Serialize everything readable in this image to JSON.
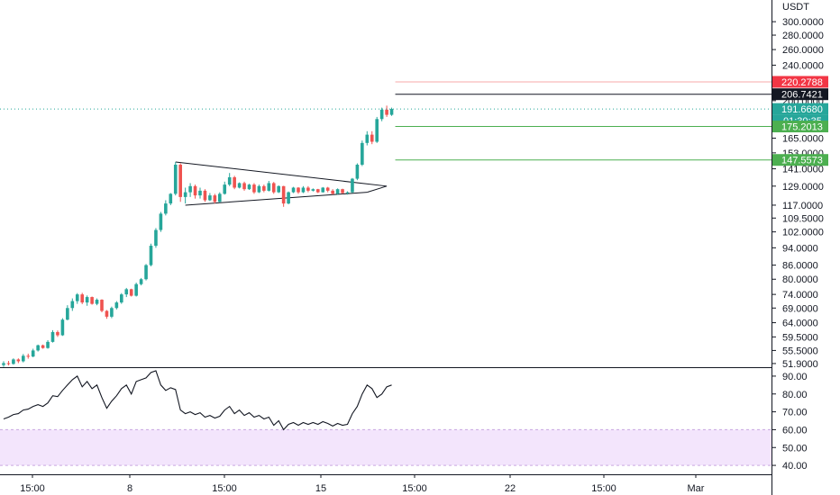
{
  "chart_data": {
    "type": "candlestick",
    "symbol_unit": "USDT",
    "price_axis": {
      "scale": "log",
      "range": [
        50,
        340
      ],
      "ticks": [
        {
          "value": 300,
          "label": "300.0000"
        },
        {
          "value": 280,
          "label": "280.0000"
        },
        {
          "value": 260,
          "label": "260.0000"
        },
        {
          "value": 240,
          "label": "240.0000"
        },
        {
          "value": 200,
          "label": "200.0000"
        },
        {
          "value": 165,
          "label": "165.0000"
        },
        {
          "value": 153,
          "label": "153.0000"
        },
        {
          "value": 141,
          "label": "141.0000"
        },
        {
          "value": 129,
          "label": "129.0000"
        },
        {
          "value": 117,
          "label": "117.0000"
        },
        {
          "value": 109.5,
          "label": "109.5000"
        },
        {
          "value": 102,
          "label": "102.0000"
        },
        {
          "value": 94,
          "label": "94.0000"
        },
        {
          "value": 86,
          "label": "86.0000"
        },
        {
          "value": 80,
          "label": "80.0000"
        },
        {
          "value": 74,
          "label": "74.0000"
        },
        {
          "value": 69,
          "label": "69.0000"
        },
        {
          "value": 64,
          "label": "64.0000"
        },
        {
          "value": 59.5,
          "label": "59.5000"
        },
        {
          "value": 55.5,
          "label": "55.5000"
        },
        {
          "value": 51.9,
          "label": "51.9000"
        }
      ]
    },
    "price_tags": [
      {
        "value": 220.2788,
        "label": "220.2788",
        "color": "#f23645",
        "line": "#f7a9a9"
      },
      {
        "value": 206.7421,
        "label": "206.7421",
        "color": "#131722",
        "line": "#131722"
      },
      {
        "value": 191.668,
        "label": "191.6680",
        "color": "#26a69a",
        "line": "#26a69a",
        "dotted": true
      },
      {
        "value": 175.2013,
        "label": "175.2013",
        "color": "#4caf50",
        "line": "#4caf50"
      },
      {
        "value": 147.5573,
        "label": "147.5573",
        "color": "#4caf50",
        "line": "#4caf50"
      }
    ],
    "countdown": "01:30:35",
    "time_axis": {
      "labels": [
        "15:00",
        "8",
        "15:00",
        "15",
        "15:00",
        "22",
        "15:00",
        "Mar"
      ]
    },
    "candles": [
      [
        51.5,
        52.5,
        51,
        52
      ],
      [
        52,
        52.6,
        51.4,
        51.8
      ],
      [
        51.8,
        53.3,
        51.6,
        53
      ],
      [
        53,
        53.3,
        52,
        52.5
      ],
      [
        52.5,
        54.5,
        52.2,
        54
      ],
      [
        54,
        54.6,
        53.2,
        53.8
      ],
      [
        53.8,
        56,
        53.6,
        55.5
      ],
      [
        55.5,
        57.2,
        55.2,
        57
      ],
      [
        57,
        57.2,
        56,
        56.2
      ],
      [
        56.2,
        58.5,
        56,
        58
      ],
      [
        58,
        61.6,
        57.8,
        61
      ],
      [
        61,
        61.5,
        59.5,
        60
      ],
      [
        60,
        65.5,
        59.8,
        65
      ],
      [
        65,
        70,
        64.8,
        69
      ],
      [
        69,
        72.5,
        68,
        71.5
      ],
      [
        71.5,
        74.5,
        70.5,
        74
      ],
      [
        74,
        74.6,
        70.4,
        71
      ],
      [
        71,
        73.6,
        69.8,
        73
      ],
      [
        73,
        73.2,
        70.2,
        70.5
      ],
      [
        70.5,
        72.5,
        70,
        72
      ],
      [
        72,
        72.2,
        67.5,
        68
      ],
      [
        68,
        68.3,
        65.3,
        66
      ],
      [
        66,
        69.5,
        65.5,
        69
      ],
      [
        69,
        71.5,
        68.5,
        71
      ],
      [
        71,
        74.5,
        70.5,
        74
      ],
      [
        74,
        76.5,
        73,
        76
      ],
      [
        76,
        76.2,
        73.2,
        73.5
      ],
      [
        73.5,
        78.6,
        73.2,
        78
      ],
      [
        78,
        80.5,
        77.5,
        80
      ],
      [
        80,
        86.5,
        79.5,
        86
      ],
      [
        86,
        96,
        85.5,
        95
      ],
      [
        95,
        104,
        94,
        103
      ],
      [
        103,
        113,
        102,
        112
      ],
      [
        112,
        120,
        111,
        118
      ],
      [
        118,
        124.5,
        117,
        124
      ],
      [
        124,
        146,
        123,
        144
      ],
      [
        144,
        145,
        119,
        122
      ],
      [
        122,
        128,
        118,
        125
      ],
      [
        125,
        131,
        122,
        129
      ],
      [
        129,
        130,
        121,
        123
      ],
      [
        123,
        128,
        121,
        126
      ],
      [
        126,
        127,
        119,
        120
      ],
      [
        120,
        124.5,
        119.5,
        123
      ],
      [
        123,
        124,
        118,
        119
      ],
      [
        119,
        125,
        118.5,
        124
      ],
      [
        124,
        132,
        123.5,
        130
      ],
      [
        130,
        138,
        129,
        135
      ],
      [
        135,
        136,
        127,
        128
      ],
      [
        128,
        131.5,
        127.5,
        131
      ],
      [
        131,
        132,
        126,
        127
      ],
      [
        127,
        130.5,
        126.5,
        130
      ],
      [
        130,
        131,
        124,
        125
      ],
      [
        125,
        130,
        124.5,
        129
      ],
      [
        129,
        130,
        125,
        126
      ],
      [
        126,
        132.5,
        125.5,
        131
      ],
      [
        131,
        131.8,
        124,
        125
      ],
      [
        125,
        129.5,
        124.5,
        129
      ],
      [
        129,
        129.2,
        116,
        118
      ],
      [
        118,
        125.5,
        117.5,
        125
      ],
      [
        125,
        128.5,
        124.5,
        128
      ],
      [
        128,
        128.4,
        124,
        125
      ],
      [
        125,
        129,
        124.5,
        128
      ],
      [
        128,
        129,
        125,
        126
      ],
      [
        126,
        127.5,
        125.5,
        127
      ],
      [
        127,
        127.2,
        124.5,
        125
      ],
      [
        125,
        128.4,
        124.8,
        128
      ],
      [
        128,
        128.5,
        125,
        126
      ],
      [
        126,
        127,
        123.5,
        124
      ],
      [
        124,
        127.5,
        123.5,
        127
      ],
      [
        127,
        127.3,
        124,
        124.5
      ],
      [
        124.5,
        125.6,
        123.5,
        125
      ],
      [
        125,
        134.5,
        124.5,
        134
      ],
      [
        134,
        145,
        133,
        144
      ],
      [
        144,
        163,
        143,
        161
      ],
      [
        161,
        171,
        159,
        168
      ],
      [
        168,
        171,
        160,
        162
      ],
      [
        162,
        184,
        161,
        182
      ],
      [
        182,
        193,
        180,
        191
      ],
      [
        191,
        195,
        184,
        186
      ],
      [
        186,
        193,
        185,
        191.668
      ]
    ],
    "pattern_lines": [
      {
        "from": [
          35,
          146
        ],
        "to": [
          78,
          129
        ]
      },
      {
        "from": [
          37,
          117
        ],
        "to": [
          74,
          125
        ]
      },
      {
        "from": [
          74,
          125
        ],
        "to": [
          78,
          129
        ]
      }
    ],
    "rsi": {
      "range": [
        35,
        95
      ],
      "ticks": [
        {
          "value": 90,
          "label": "90.00"
        },
        {
          "value": 80,
          "label": "80.00"
        },
        {
          "value": 70,
          "label": "70.00"
        },
        {
          "value": 60,
          "label": "60.00"
        },
        {
          "value": 50,
          "label": "50.00"
        },
        {
          "value": 40,
          "label": "40.00"
        }
      ],
      "band": [
        40,
        60
      ],
      "values": [
        66,
        67,
        68.5,
        69,
        71,
        71.5,
        73,
        74,
        73,
        75,
        79,
        78.5,
        82,
        85,
        88,
        90,
        84,
        87,
        83,
        85,
        78,
        72,
        76,
        79,
        83,
        85,
        80,
        87,
        88,
        89,
        92,
        93,
        85,
        82,
        83.5,
        82.5,
        71,
        69,
        70,
        68.5,
        69.5,
        67,
        68,
        66.5,
        67.5,
        71,
        73,
        69,
        71,
        68,
        69.5,
        67,
        68,
        66,
        67,
        62.5,
        65,
        60,
        63,
        64,
        62.5,
        64,
        63,
        64,
        63,
        64.5,
        63.5,
        62,
        63.5,
        62.5,
        63,
        69,
        73,
        80,
        85,
        83,
        78,
        80,
        84,
        85
      ]
    }
  }
}
